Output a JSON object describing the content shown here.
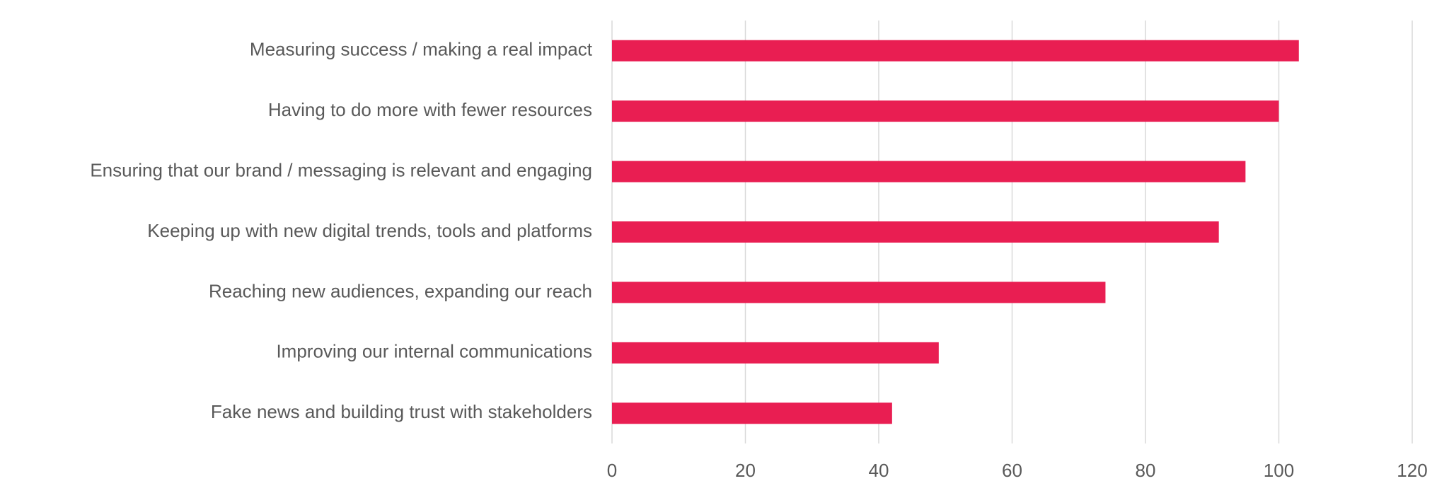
{
  "chart_data": {
    "type": "barh",
    "categories": [
      "Measuring success / making a real impact",
      "Having to do more with fewer resources",
      "Ensuring that our brand / messaging is relevant and engaging",
      "Keeping up with new digital trends, tools and platforms",
      "Reaching new audiences, expanding our reach",
      "Improving our internal communications",
      "Fake news and building trust with stakeholders"
    ],
    "values": [
      103,
      100,
      95,
      91,
      74,
      49,
      42
    ],
    "color": "#e91e52",
    "xlim": [
      0,
      120
    ],
    "xticks": [
      0,
      20,
      40,
      60,
      80,
      100,
      120
    ],
    "grid": true
  }
}
